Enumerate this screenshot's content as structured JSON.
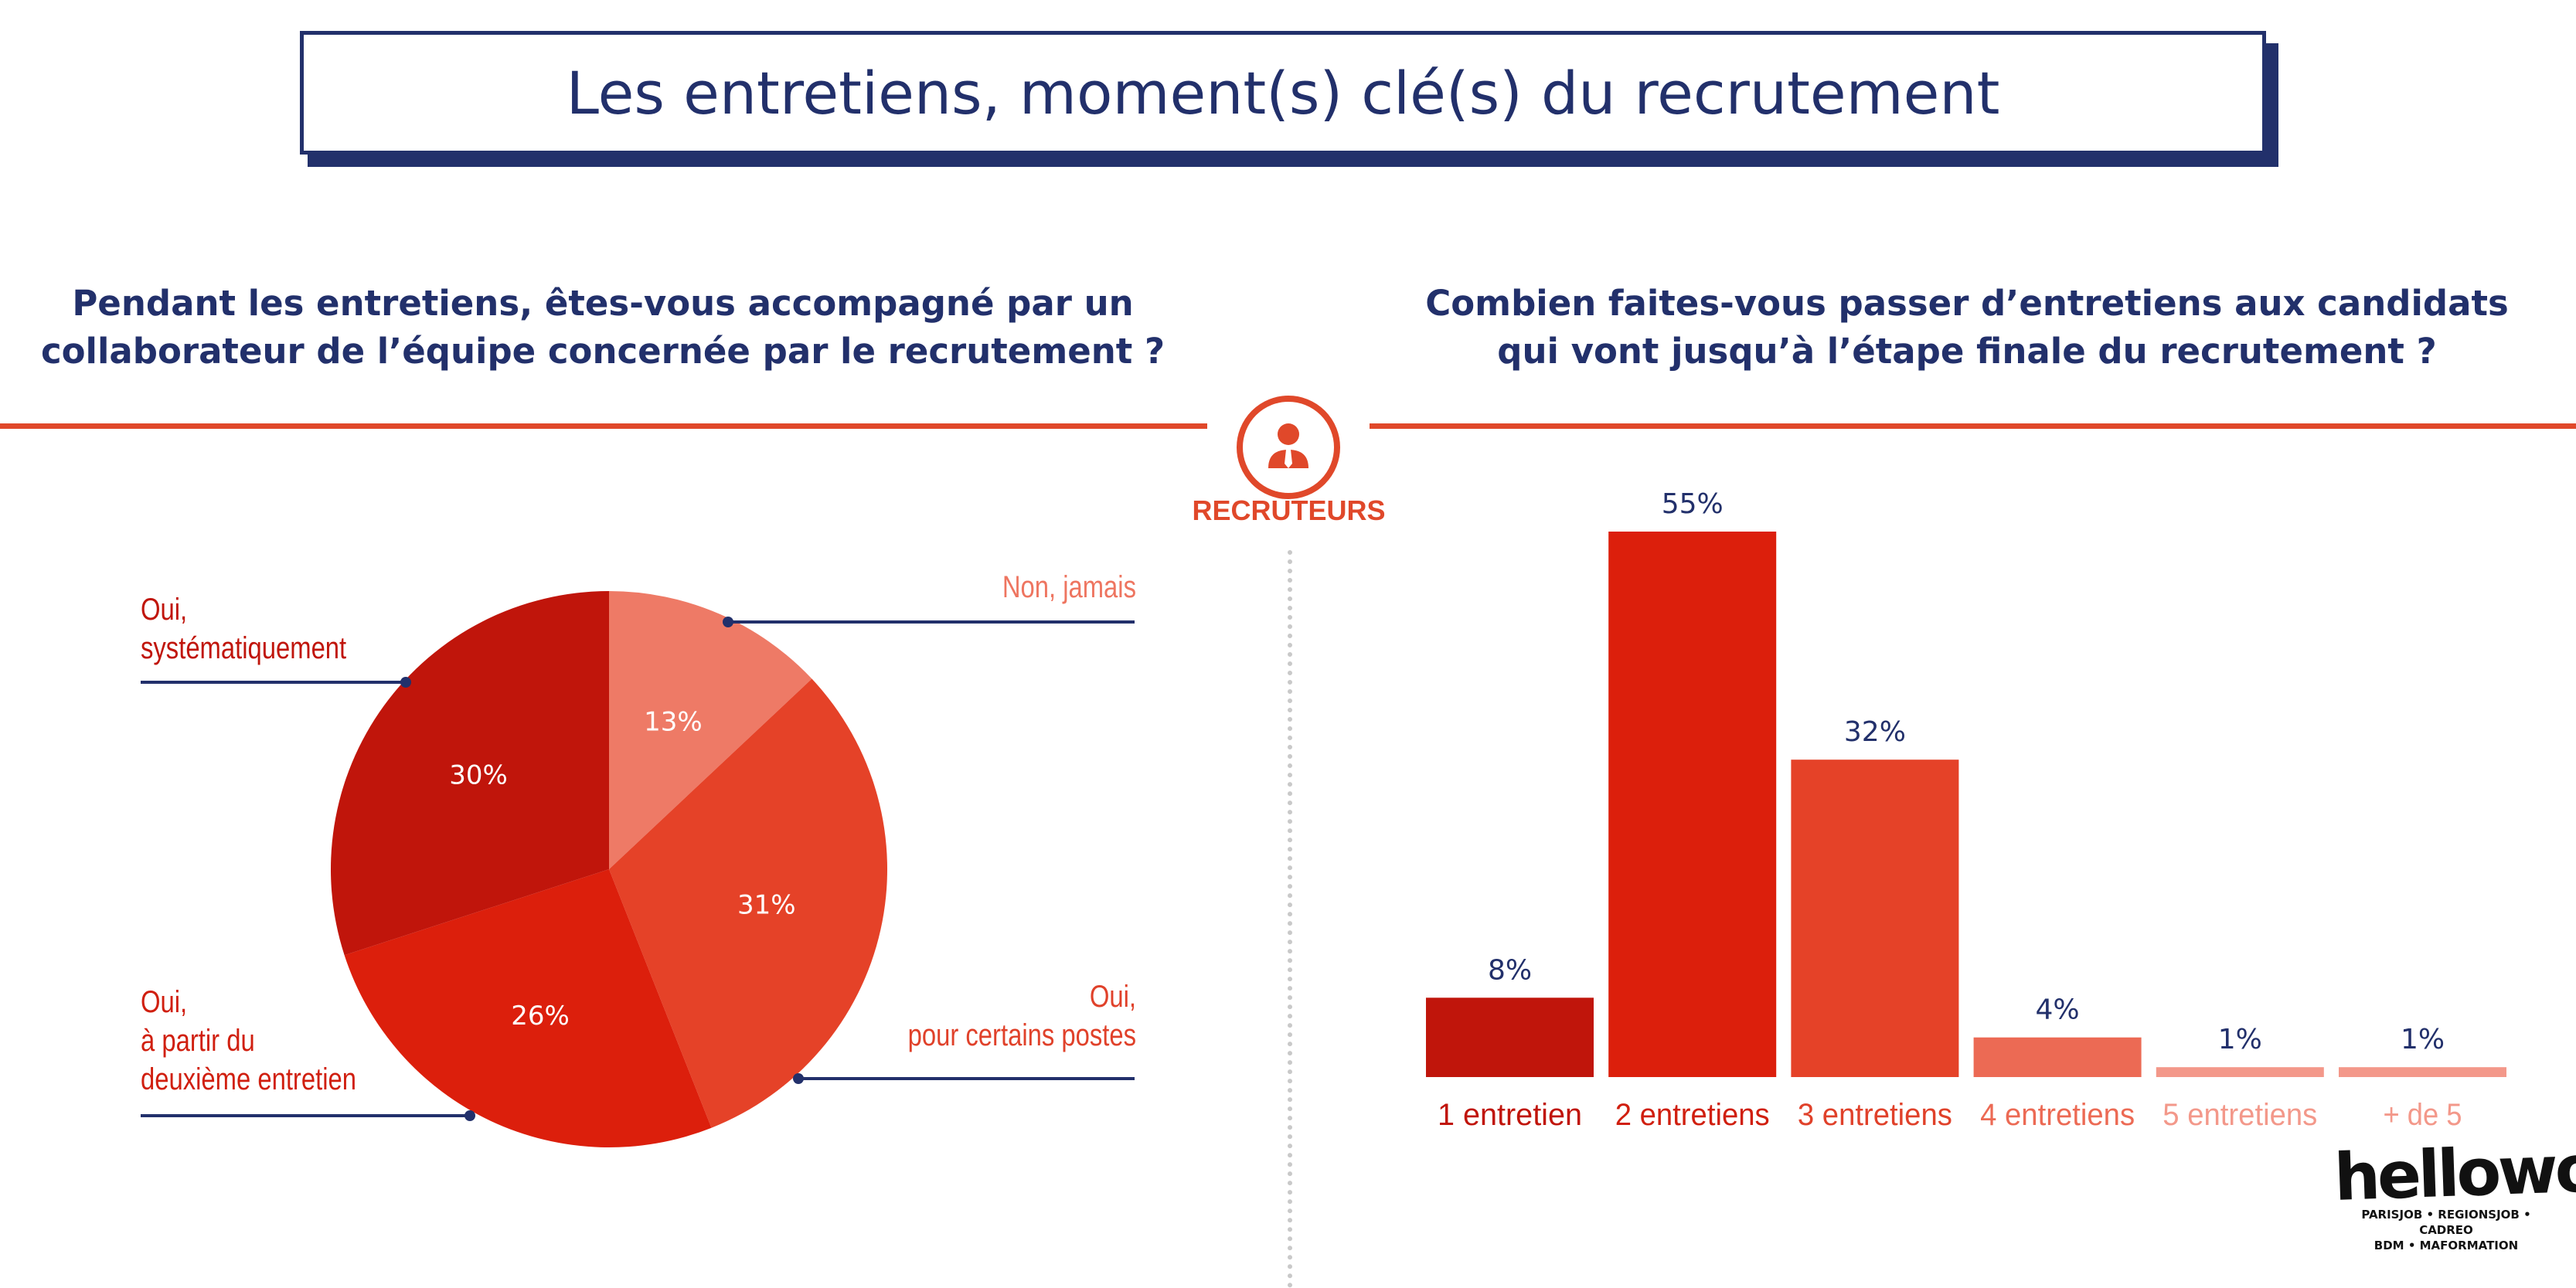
{
  "header": {
    "title": "Les entretiens, moment(s) clé(s) du recrutement"
  },
  "center_badge": {
    "icon": "recruiter-person-icon",
    "label": "RECRUTEURS",
    "color": "#e0482a"
  },
  "left_question": {
    "line1": "Pendant les entretiens, êtes-vous accompagné par un",
    "line2": "collaborateur de l’équipe concernée par le recrutement ?"
  },
  "right_question": {
    "line1": "Combien faites-vous passer d’entretiens aux candidats",
    "line2": "qui vont jusqu’à l’étape finale du recrutement ?"
  },
  "pie_labels": [
    {
      "line1": "Non, jamais",
      "line2": "",
      "line3": ""
    },
    {
      "line1": "Oui,",
      "line2": "pour certains postes",
      "line3": ""
    },
    {
      "line1": "Oui,",
      "line2": "à partir du",
      "line3": "deuxième entretien"
    },
    {
      "line1": "Oui,",
      "line2": "systématiquement",
      "line3": ""
    }
  ],
  "chart_data": [
    {
      "type": "pie",
      "slices": [
        {
          "label": "Non, jamais",
          "value": 13,
          "display": "13%",
          "color": "#ee7a66"
        },
        {
          "label": "Oui, pour certains postes",
          "value": 31,
          "display": "31%",
          "color": "#e54228"
        },
        {
          "label": "Oui, à partir du deuxième entretien",
          "value": 26,
          "display": "26%",
          "color": "#dc1f0c"
        },
        {
          "label": "Oui, systématiquement",
          "value": 30,
          "display": "30%",
          "color": "#c0150b"
        }
      ]
    },
    {
      "type": "bar",
      "categories": [
        "1 entretien",
        "2 entretiens",
        "3 entretiens",
        "4 entretiens",
        "5 entretiens",
        "+ de 5"
      ],
      "values": [
        8,
        55,
        32,
        4,
        1,
        1
      ],
      "value_labels": [
        "8%",
        "55%",
        "32%",
        "4%",
        "1%",
        "1%"
      ],
      "colors": [
        "#c0150b",
        "#dc1f0c",
        "#e54228",
        "#ec6a54",
        "#f3988a",
        "#f3988a"
      ],
      "label_colors": [
        "#c0150b",
        "#d01f0f",
        "#e0412a",
        "#ec6a54",
        "#f3988a",
        "#f3988a"
      ]
    }
  ],
  "logo": {
    "wordmark": "hellowork",
    "subline1": "PARISJOB • REGIONSJOB • CADREO",
    "subline2": "BDM • MAFORMATION"
  },
  "colors": {
    "navy": "#22306b",
    "accent": "#e0482a"
  }
}
